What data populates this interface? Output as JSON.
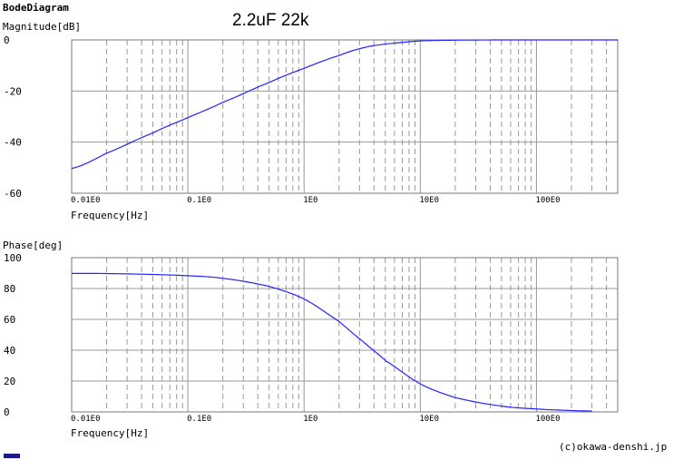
{
  "page_title": "BodeDiagram",
  "note": "2.2uF 22k",
  "credit": "(c)okawa-denshi.jp",
  "colors": {
    "curve": "#2323ff",
    "grid": "#999999",
    "frame": "#7a7a7a"
  },
  "chart_data": [
    {
      "type": "line",
      "ylabel": "Magnitude[dB]",
      "xlabel": "Frequency[Hz]",
      "x_scale": "log",
      "xlim": [
        0.01,
        500
      ],
      "ylim": [
        -60,
        0
      ],
      "yticks": [
        0,
        -20,
        -40,
        -60
      ],
      "yticks_text": [
        "0",
        "-20",
        "-40",
        "-60"
      ],
      "xticks": [
        0.01,
        0.1,
        1,
        10,
        100
      ],
      "xticks_text": [
        "0.01E0",
        "0.1E0",
        "1E0",
        "10E0",
        "100E0"
      ],
      "grid": true,
      "series": [
        {
          "x": [
            0.01,
            0.02,
            0.05,
            0.1,
            0.2,
            0.5,
            1,
            2,
            3.29,
            5,
            10,
            20,
            50,
            100,
            200,
            500
          ],
          "y": [
            -50.3,
            -44.3,
            -36.4,
            -30.4,
            -24.4,
            -16.7,
            -11.1,
            -6.1,
            -3.0,
            -1.6,
            -0.4,
            -0.1,
            0.0,
            0.0,
            0.0,
            0.0
          ]
        }
      ]
    },
    {
      "type": "line",
      "ylabel": "Phase[deg]",
      "xlabel": "Frequency[Hz]",
      "x_scale": "log",
      "xlim": [
        0.01,
        500
      ],
      "ylim": [
        0,
        100
      ],
      "yticks": [
        100,
        80,
        60,
        40,
        20,
        0
      ],
      "yticks_text": [
        "100",
        "80",
        "60",
        "40",
        "20",
        "0"
      ],
      "xticks": [
        0.01,
        0.1,
        1,
        10,
        100
      ],
      "xticks_text": [
        "0.01E0",
        "0.1E0",
        "1E0",
        "10E0",
        "100E0"
      ],
      "grid": true,
      "series": [
        {
          "x": [
            0.01,
            0.02,
            0.05,
            0.1,
            0.2,
            0.5,
            1,
            2,
            3.29,
            5,
            10,
            20,
            50,
            100,
            200,
            300
          ],
          "y": [
            89.8,
            89.7,
            89.1,
            88.3,
            86.6,
            81.4,
            73.2,
            58.7,
            45.0,
            33.3,
            18.2,
            9.3,
            3.8,
            1.9,
            0.9,
            0.6
          ]
        }
      ]
    }
  ]
}
